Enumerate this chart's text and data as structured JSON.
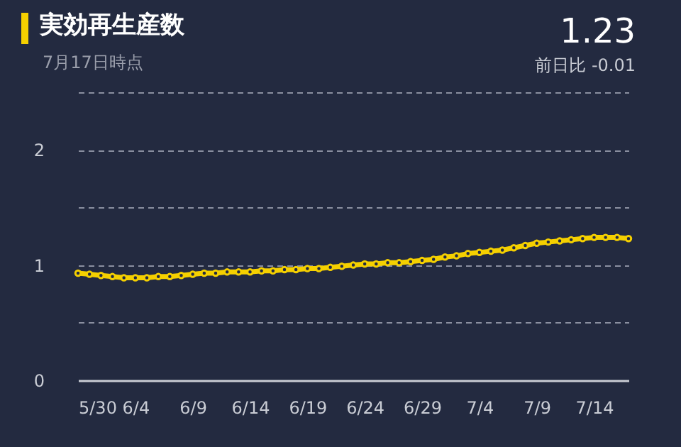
{
  "chart_data": {
    "type": "line",
    "title": "実効再生産数",
    "subtitle": "7月17日時点",
    "annotations": [
      "1.23",
      "前日比 -0.01"
    ],
    "x": [
      "--05-30",
      "--05-31",
      "--06-01",
      "--06-02",
      "--06-03",
      "--06-04",
      "--06-05",
      "--06-06",
      "--06-07",
      "--06-08",
      "--06-09",
      "--06-10",
      "--06-11",
      "--06-12",
      "--06-13",
      "--06-14",
      "--06-15",
      "--06-16",
      "--06-17",
      "--06-18",
      "--06-19",
      "--06-20",
      "--06-21",
      "--06-22",
      "--06-23",
      "--06-24",
      "--06-25",
      "--06-26",
      "--06-27",
      "--06-28",
      "--06-29",
      "--06-30",
      "--07-01",
      "--07-02",
      "--07-03",
      "--07-04",
      "--07-05",
      "--07-06",
      "--07-07",
      "--07-08",
      "--07-09",
      "--07-10",
      "--07-11",
      "--07-12",
      "--07-13",
      "--07-14",
      "--07-15",
      "--07-16",
      "--07-17"
    ],
    "series": [
      {
        "color": "#f5d000",
        "values": [
          0.93,
          0.92,
          0.91,
          0.9,
          0.89,
          0.89,
          0.89,
          0.9,
          0.9,
          0.91,
          0.92,
          0.93,
          0.93,
          0.94,
          0.94,
          0.94,
          0.95,
          0.95,
          0.96,
          0.96,
          0.97,
          0.97,
          0.98,
          0.99,
          1.0,
          1.01,
          1.01,
          1.02,
          1.02,
          1.03,
          1.04,
          1.05,
          1.07,
          1.08,
          1.1,
          1.11,
          1.12,
          1.13,
          1.15,
          1.17,
          1.19,
          1.2,
          1.21,
          1.22,
          1.23,
          1.24,
          1.24,
          1.24,
          1.23
        ]
      }
    ],
    "xlim": [
      "--05-30",
      "--07-17"
    ],
    "xticks": [
      {
        "value": "--05-30",
        "label": "5/30"
      },
      {
        "value": "--06-04",
        "label": "6/4"
      },
      {
        "value": "--06-09",
        "label": "6/9"
      },
      {
        "value": "--06-14",
        "label": "6/14"
      },
      {
        "value": "--06-19",
        "label": "6/19"
      },
      {
        "value": "--06-24",
        "label": "6/24"
      },
      {
        "value": "--06-29",
        "label": "6/29"
      },
      {
        "value": "--07-04",
        "label": "7/4"
      },
      {
        "value": "--07-09",
        "label": "7/9"
      },
      {
        "value": "--07-14",
        "label": "7/14"
      }
    ],
    "ylim": [
      0,
      2.5
    ],
    "yticks": [
      0,
      {
        "value": 0.5,
        "label": null
      },
      1,
      {
        "value": 1.5,
        "label": null
      },
      2,
      {
        "value": 2.5,
        "label": null
      }
    ],
    "grid": "y",
    "marker": "circle",
    "line_style": "solid"
  }
}
